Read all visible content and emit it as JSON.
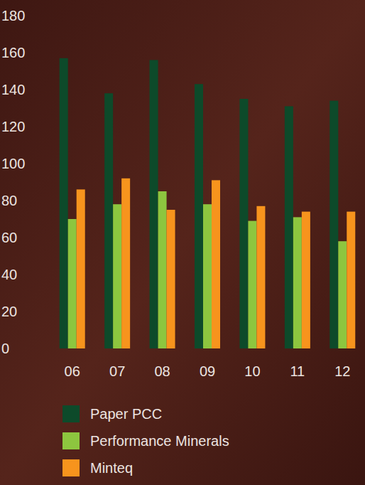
{
  "chart_data": {
    "type": "bar",
    "categories": [
      "06",
      "07",
      "08",
      "09",
      "10",
      "11",
      "12"
    ],
    "series": [
      {
        "name": "Paper PCC",
        "color": "#0d4a2a",
        "values": [
          157,
          138,
          156,
          143,
          135,
          131,
          134
        ]
      },
      {
        "name": "Performance Minerals",
        "color": "#8dc63f",
        "values": [
          70,
          78,
          85,
          78,
          69,
          71,
          58
        ]
      },
      {
        "name": "Minteq",
        "color": "#f7941d",
        "values": [
          86,
          92,
          75,
          91,
          77,
          74,
          74
        ]
      }
    ],
    "ylim": [
      0,
      180
    ],
    "yticks": [
      0,
      20,
      40,
      60,
      80,
      100,
      120,
      140,
      160,
      180
    ],
    "grid": false,
    "legend": "bottom"
  }
}
